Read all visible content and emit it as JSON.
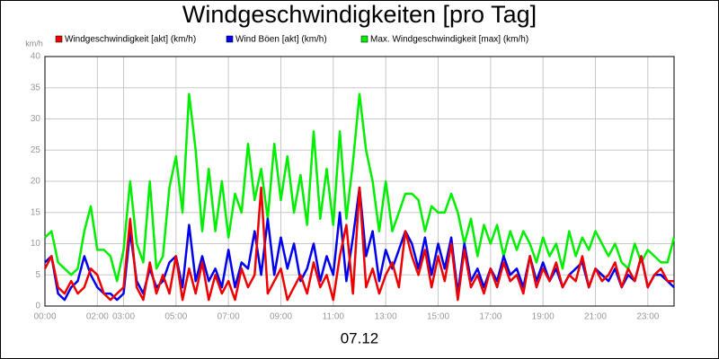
{
  "chart_data": {
    "type": "line",
    "title": "Windgeschwindigkeiten [pro Tag]",
    "y_unit": "km/h",
    "x_label": "07.12",
    "xlim": [
      0,
      24
    ],
    "ylim": [
      0,
      40
    ],
    "yticks": [
      0,
      5,
      10,
      15,
      20,
      25,
      30,
      35,
      40
    ],
    "xticks": [
      {
        "value": 0,
        "label": "00:00"
      },
      {
        "value": 2,
        "label": "02:00"
      },
      {
        "value": 3,
        "label": "03:00"
      },
      {
        "value": 5,
        "label": "05:00"
      },
      {
        "value": 7,
        "label": "07:00"
      },
      {
        "value": 9,
        "label": "09:00"
      },
      {
        "value": 11,
        "label": "11:00"
      },
      {
        "value": 13,
        "label": "13:00"
      },
      {
        "value": 15,
        "label": "15:00"
      },
      {
        "value": 17,
        "label": "17:00"
      },
      {
        "value": 19,
        "label": "19:00"
      },
      {
        "value": 21,
        "label": "21:00"
      },
      {
        "value": 23,
        "label": "23:00"
      }
    ],
    "grid": true,
    "x": [
      0,
      0.25,
      0.5,
      0.75,
      1,
      1.25,
      1.5,
      1.75,
      2,
      2.25,
      2.5,
      2.75,
      3,
      3.25,
      3.5,
      3.75,
      4,
      4.25,
      4.5,
      4.75,
      5,
      5.25,
      5.5,
      5.75,
      6,
      6.25,
      6.5,
      6.75,
      7,
      7.25,
      7.5,
      7.75,
      8,
      8.25,
      8.5,
      8.75,
      9,
      9.25,
      9.5,
      9.75,
      10,
      10.25,
      10.5,
      10.75,
      11,
      11.25,
      11.5,
      11.75,
      12,
      12.25,
      12.5,
      12.75,
      13,
      13.25,
      13.5,
      13.75,
      14,
      14.25,
      14.5,
      14.75,
      15,
      15.25,
      15.5,
      15.75,
      16,
      16.25,
      16.5,
      16.75,
      17,
      17.25,
      17.5,
      17.75,
      18,
      18.25,
      18.5,
      18.75,
      19,
      19.25,
      19.5,
      19.75,
      20,
      20.25,
      20.5,
      20.75,
      21,
      21.25,
      21.5,
      21.75,
      22,
      22.25,
      22.5,
      22.75,
      23,
      23.25,
      23.5,
      23.75,
      24
    ],
    "series": [
      {
        "name": "Max. Windgeschwindigkeit [max] (km/h)",
        "color": "#00ee00",
        "values": [
          11,
          12,
          7,
          6,
          5,
          6,
          12,
          16,
          9,
          9,
          8,
          4,
          9,
          20,
          10,
          7,
          20,
          6,
          8,
          19,
          24,
          15,
          34,
          25,
          12,
          22,
          12,
          20,
          11,
          18,
          15,
          26,
          17,
          22,
          14,
          26,
          17,
          24,
          15,
          21,
          13,
          28,
          14,
          22,
          13,
          28,
          14,
          23,
          34,
          25,
          20,
          12,
          20,
          12,
          15,
          18,
          18,
          17,
          12,
          16,
          15,
          15,
          18,
          15,
          10,
          14,
          8,
          13,
          10,
          13,
          8,
          12,
          9,
          12,
          10,
          7,
          11,
          8,
          10,
          6,
          12,
          8,
          11,
          9,
          12,
          10,
          8,
          10,
          7,
          6,
          10,
          7,
          9,
          8,
          7,
          7,
          11
        ]
      },
      {
        "name": "Wind Böen [akt] (km/h)",
        "color": "#0000ee",
        "values": [
          7,
          8,
          2,
          1,
          3,
          4,
          8,
          5,
          3,
          2,
          2,
          1,
          2,
          12,
          4,
          2,
          6,
          3,
          4,
          7,
          8,
          3,
          13,
          4,
          8,
          4,
          6,
          3,
          9,
          3,
          7,
          6,
          12,
          5,
          14,
          5,
          11,
          6,
          10,
          4,
          6,
          10,
          4,
          8,
          5,
          15,
          4,
          11,
          19,
          8,
          12,
          4,
          9,
          6,
          9,
          12,
          10,
          6,
          11,
          5,
          10,
          6,
          11,
          2,
          10,
          4,
          6,
          3,
          6,
          4,
          8,
          5,
          6,
          3,
          8,
          4,
          7,
          4,
          6,
          3,
          5,
          6,
          7,
          3,
          6,
          5,
          4,
          6,
          3,
          5,
          4,
          8,
          3,
          5,
          5,
          4,
          3
        ]
      },
      {
        "name": "Windgeschwindigkeit [akt] (km/h)",
        "color": "#ee0000",
        "values": [
          6,
          8,
          3,
          2,
          4,
          2,
          3,
          6,
          5,
          2,
          1,
          2,
          3,
          14,
          3,
          1,
          7,
          2,
          5,
          2,
          8,
          1,
          6,
          2,
          7,
          1,
          5,
          2,
          4,
          1,
          6,
          3,
          5,
          19,
          2,
          4,
          6,
          1,
          3,
          5,
          2,
          7,
          3,
          5,
          1,
          8,
          13,
          2,
          19,
          3,
          6,
          2,
          5,
          7,
          3,
          12,
          8,
          5,
          9,
          3,
          8,
          4,
          10,
          1,
          9,
          3,
          5,
          2,
          6,
          3,
          7,
          4,
          5,
          2,
          8,
          3,
          6,
          4,
          7,
          3,
          5,
          4,
          8,
          3,
          6,
          4,
          5,
          7,
          3,
          6,
          4,
          8,
          3,
          5,
          6,
          4,
          4
        ]
      }
    ],
    "legend_order": [
      2,
      1,
      0
    ]
  }
}
